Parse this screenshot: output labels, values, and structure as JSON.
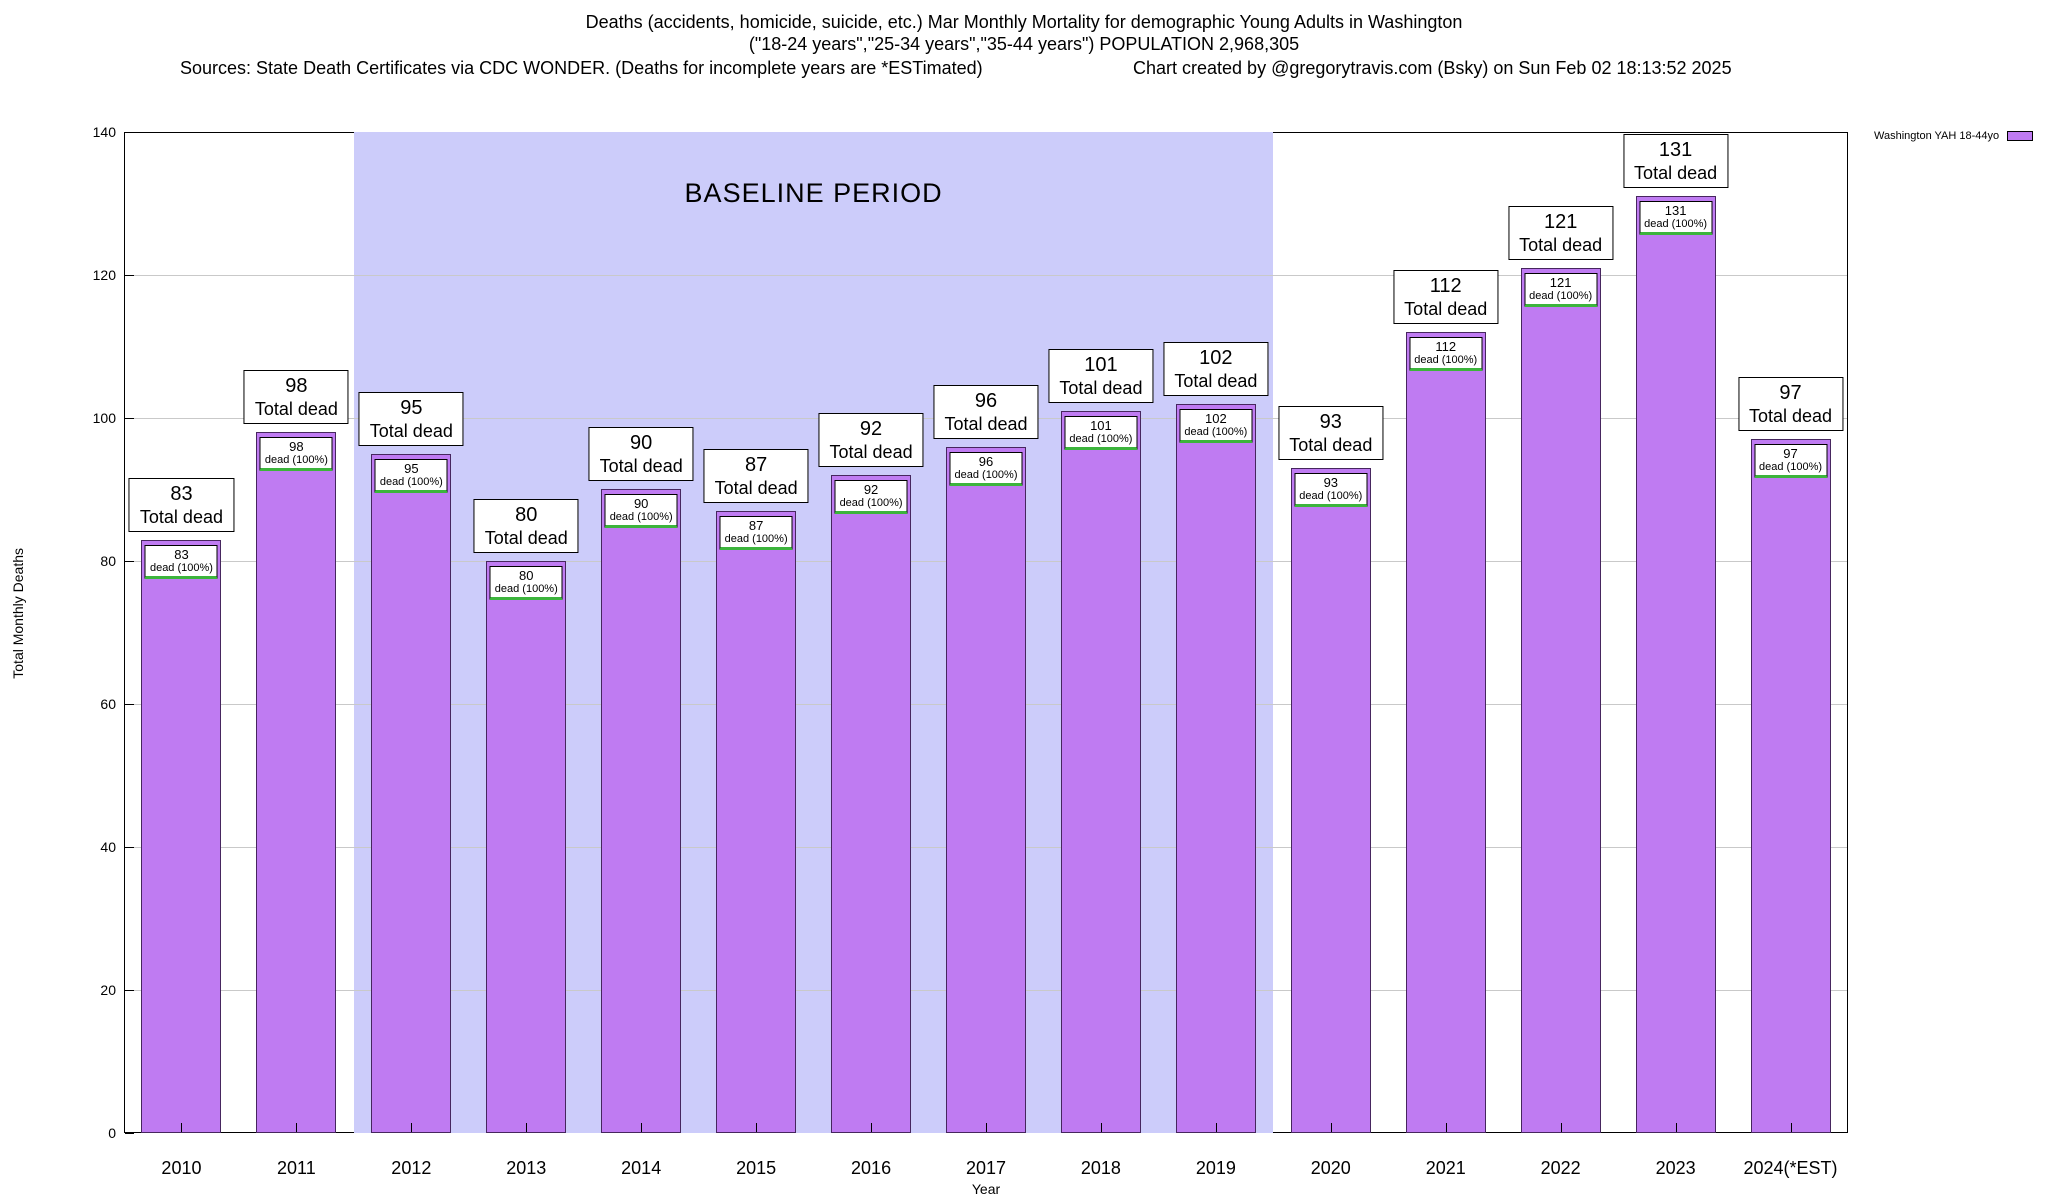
{
  "header": {
    "title_line1": "Deaths (accidents, homicide, suicide, etc.) Mar Monthly Mortality for demographic Young Adults in Washington",
    "title_line2": "(\"18-24 years\",\"25-34 years\",\"35-44 years\") POPULATION 2,968,305",
    "sources": "Sources: State Death Certificates via CDC WONDER. (Deaths for incomplete years are *ESTimated)",
    "credit": "Chart created by @gregorytravis.com (Bsky) on Sun Feb 02 18:13:52 2025"
  },
  "chart_data": {
    "type": "bar",
    "title": "Deaths (accidents, homicide, suicide, etc.) Mar Monthly Mortality for demographic Young Adults in Washington",
    "subtitle": "(\"18-24 years\",\"25-34 years\",\"35-44 years\") POPULATION 2,968,305",
    "categories": [
      "2010",
      "2011",
      "2012",
      "2013",
      "2014",
      "2015",
      "2016",
      "2017",
      "2018",
      "2019",
      "2020",
      "2021",
      "2022",
      "2023",
      "2024(*EST)"
    ],
    "values": [
      83,
      98,
      95,
      80,
      90,
      87,
      92,
      96,
      101,
      102,
      93,
      112,
      121,
      131,
      97
    ],
    "series_name": "Washington YAH 18-44yo",
    "xlabel": "Year",
    "ylabel": "Total Monthly Deaths",
    "ylim": [
      0,
      140
    ],
    "yticks": [
      0,
      20,
      40,
      60,
      80,
      100,
      120,
      140
    ],
    "grid": "horizontal",
    "legend_position": "top-right",
    "bar_color": "#bf7bf2",
    "bar_top_label_suffix": "Total dead",
    "bar_inner_label_suffix": "dead (100%)",
    "baseline_band": {
      "label": "BASELINE PERIOD",
      "start_category": "2012",
      "end_category": "2019",
      "color": "#ccccfa"
    }
  }
}
